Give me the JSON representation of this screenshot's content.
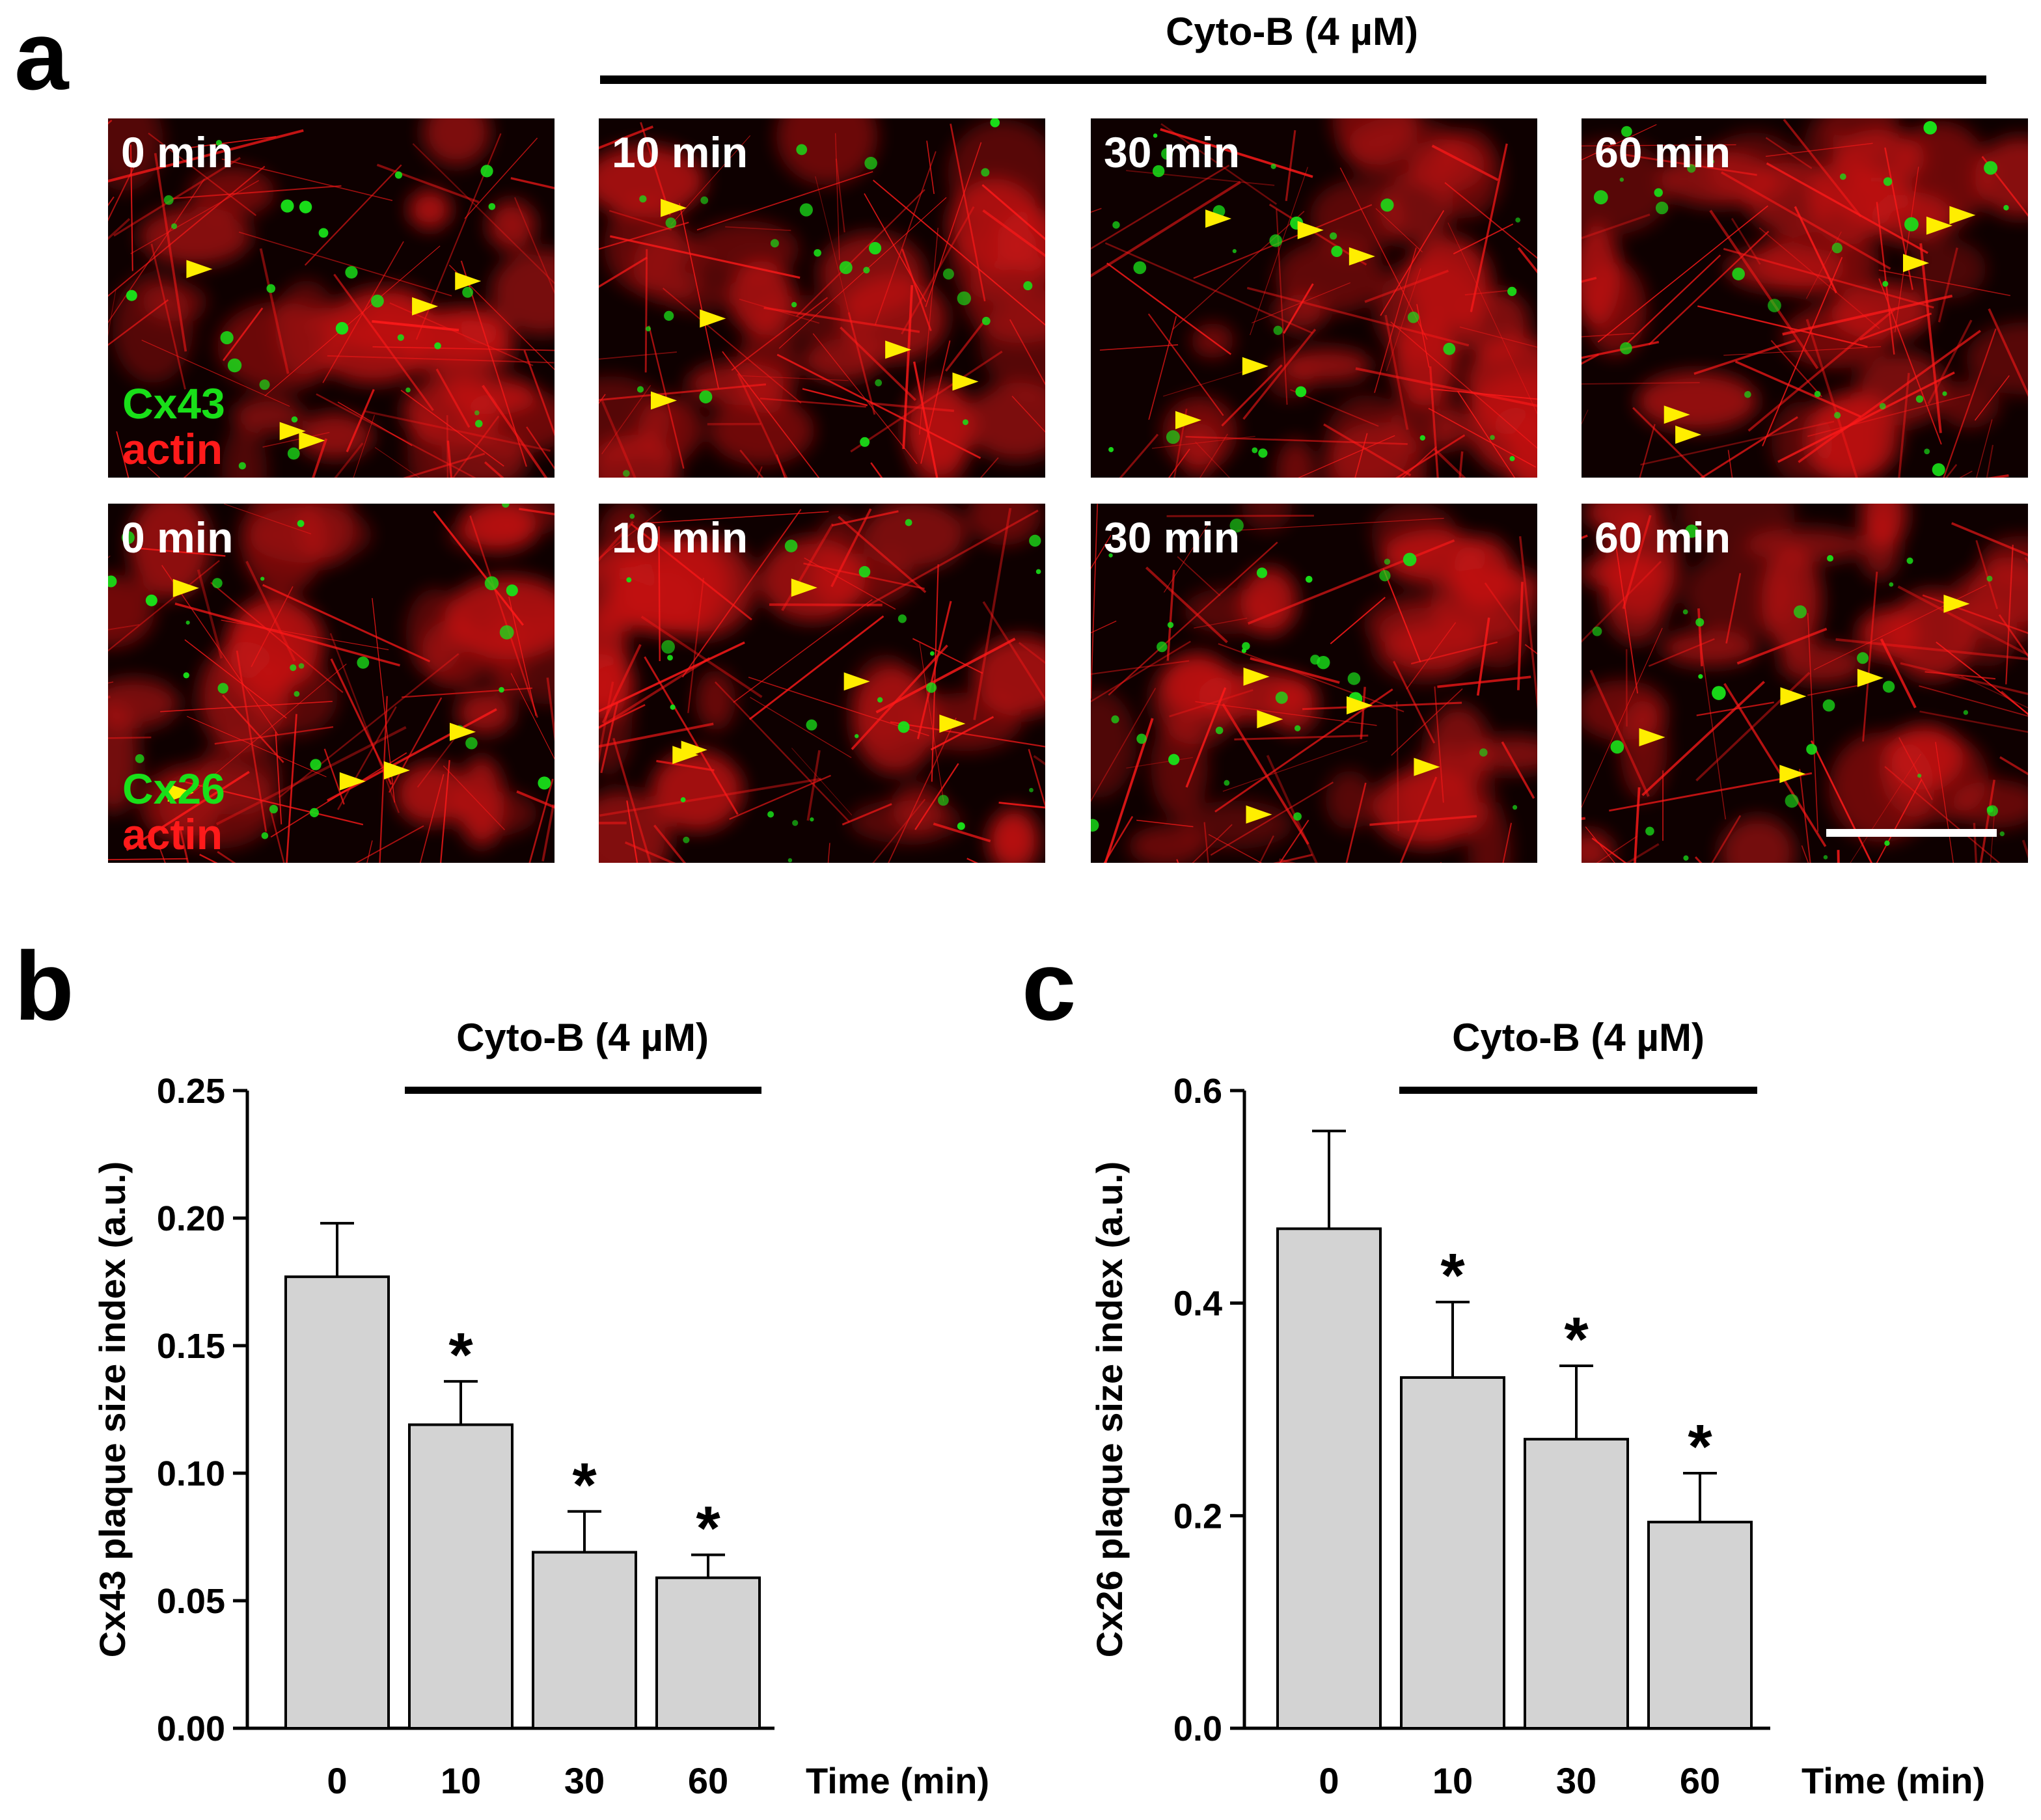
{
  "panel_a": {
    "letter": "a",
    "treatment": "Cyto-B (4 µM)",
    "rows": [
      {
        "stain_green": "Cx43",
        "stain_red": "actin",
        "timepoints": [
          "0 min",
          "10 min",
          "30 min",
          "60 min"
        ]
      },
      {
        "stain_green": "Cx26",
        "stain_red": "actin",
        "timepoints": [
          "0 min",
          "10 min",
          "30 min",
          "60 min"
        ]
      }
    ],
    "colors": {
      "actin": "#ff1a1a",
      "connexin": "#19e019",
      "arrowhead": "#ffee00"
    }
  },
  "panel_b": {
    "letter": "b",
    "treatment": "Cyto-B (4 µM)"
  },
  "panel_c": {
    "letter": "c",
    "treatment": "Cyto-B (4 µM)"
  },
  "chart_data": [
    {
      "type": "bar",
      "categories": [
        "0",
        "10",
        "30",
        "60"
      ],
      "values": [
        0.177,
        0.119,
        0.069,
        0.059
      ],
      "errors": [
        0.021,
        0.017,
        0.016,
        0.009
      ],
      "significance": [
        "",
        "*",
        "*",
        "*"
      ],
      "title": "",
      "xlabel": "Time (min)",
      "ylabel": "Cx43 plaque size index (a.u.)",
      "ylim": [
        0,
        0.25
      ],
      "yticks": [
        "0.00",
        "0.05",
        "0.10",
        "0.15",
        "0.20",
        "0.25"
      ],
      "yticks_values": [
        0,
        0.05,
        0.1,
        0.15,
        0.2,
        0.25
      ],
      "bar_color": "#d3d3d3"
    },
    {
      "type": "bar",
      "categories": [
        "0",
        "10",
        "30",
        "60"
      ],
      "values": [
        0.47,
        0.33,
        0.272,
        0.194
      ],
      "errors": [
        0.092,
        0.071,
        0.069,
        0.046
      ],
      "significance": [
        "",
        "*",
        "*",
        "*"
      ],
      "title": "",
      "xlabel": "Time (min)",
      "ylabel": "Cx26 plaque size index (a.u.)",
      "ylim": [
        0,
        0.6
      ],
      "yticks": [
        "0.0",
        "0.2",
        "0.4",
        "0.6"
      ],
      "yticks_values": [
        0,
        0.2,
        0.4,
        0.6
      ],
      "bar_color": "#d3d3d3"
    }
  ]
}
